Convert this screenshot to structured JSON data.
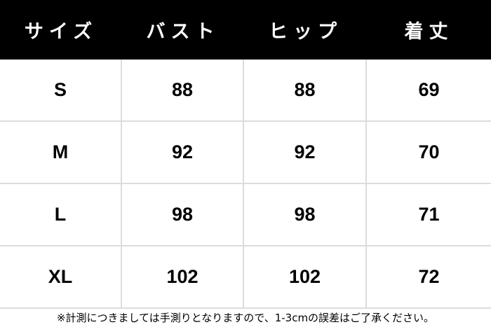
{
  "table": {
    "headers": [
      "サイズ",
      "バスト",
      "ヒップ",
      "着丈"
    ],
    "rows": [
      [
        "S",
        "88",
        "88",
        "69"
      ],
      [
        "M",
        "92",
        "92",
        "70"
      ],
      [
        "L",
        "98",
        "98",
        "71"
      ],
      [
        "XL",
        "102",
        "102",
        "72"
      ]
    ]
  },
  "note": "※計測につきましては手測りとなりますので、1-3cmの誤差はご了承ください。",
  "colors": {
    "header_bg": "#000000",
    "header_text": "#ffffff",
    "grid": "#dcdcdc"
  }
}
